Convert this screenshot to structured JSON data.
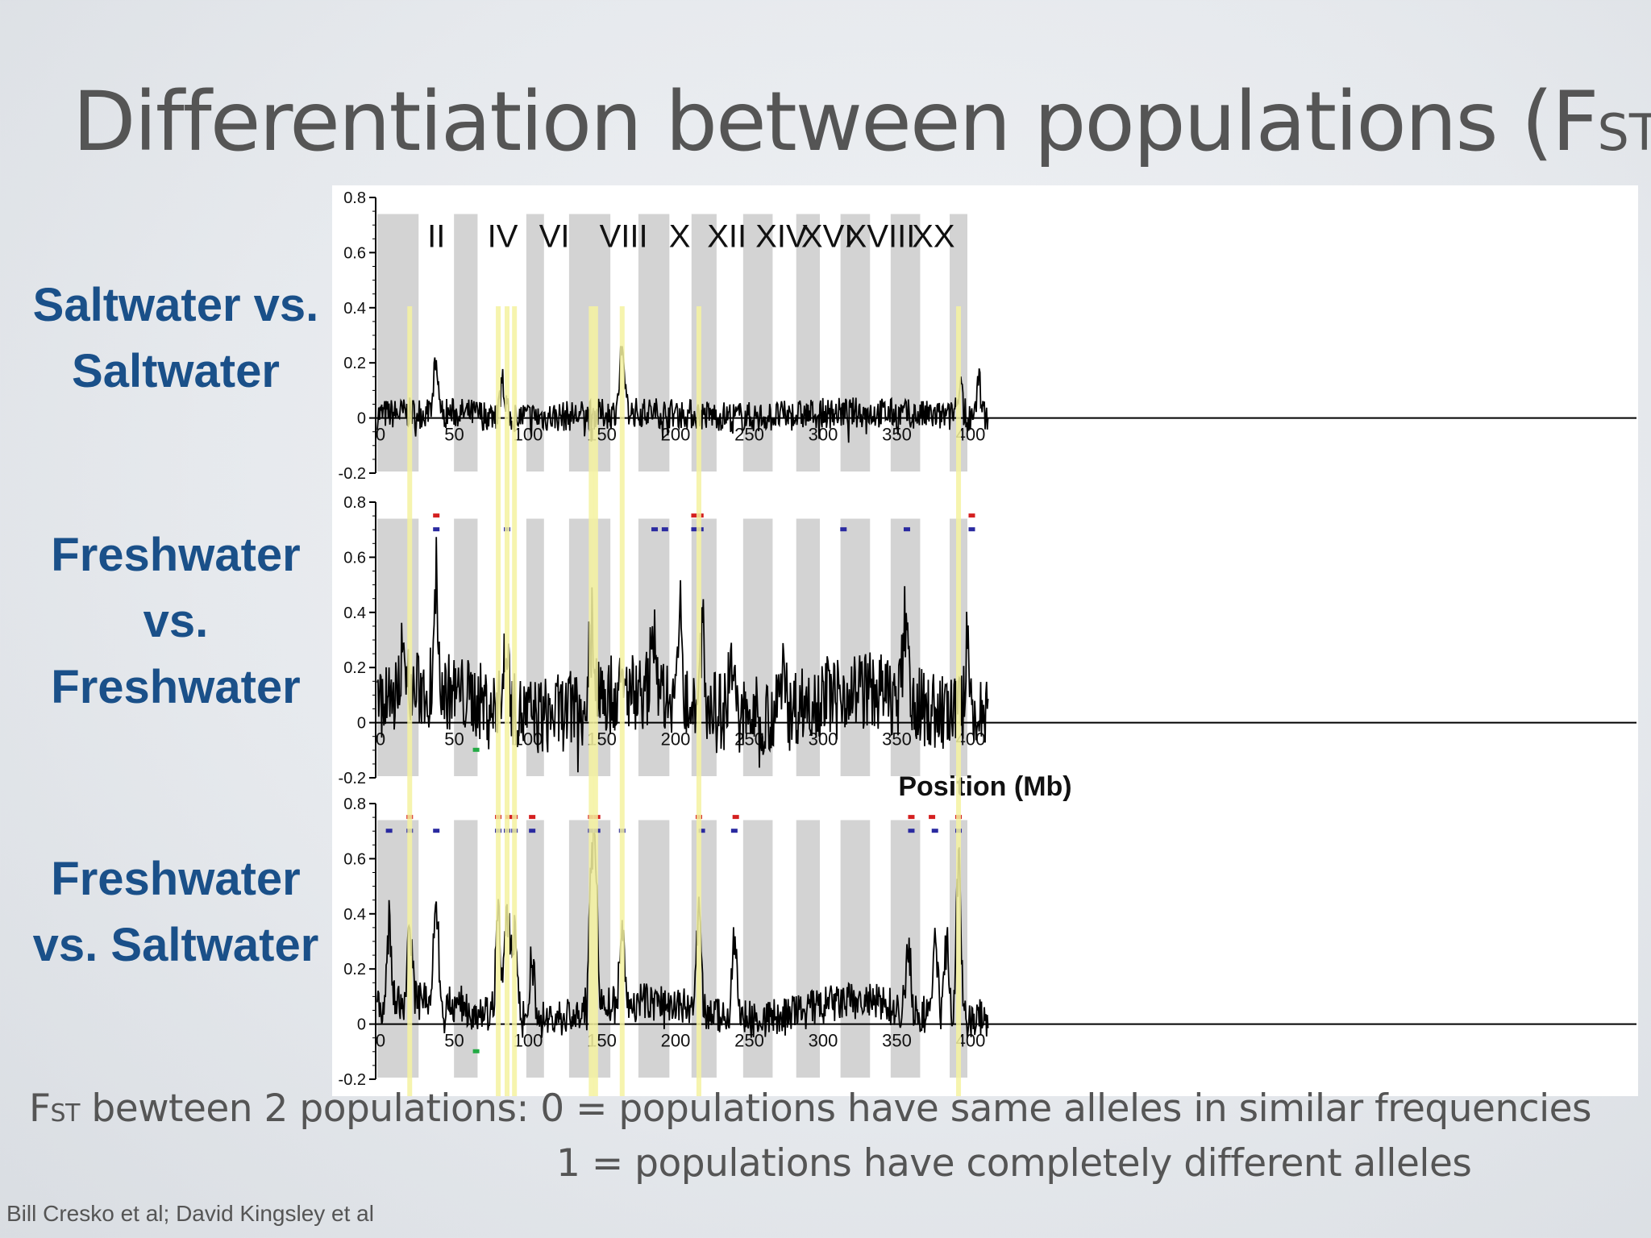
{
  "slide": {
    "title_main": "Differentiation between populations (F",
    "title_sub": "ST",
    "title_close": ")",
    "fst_note_prefix": "F",
    "fst_note_sub": "ST",
    "fst_note_text": " bewteen 2 populations: 0 = populations have same alleles in similar frequencies",
    "fst_note_line2": "1 = populations have completely different alleles",
    "credit": "Bill Cresko et al; David Kingsley et al"
  },
  "row_labels": [
    [
      "Saltwater vs.",
      "Saltwater"
    ],
    [
      "Freshwater",
      "vs.",
      "Freshwater"
    ],
    [
      "Freshwater",
      "vs. Saltwater"
    ]
  ],
  "colors": {
    "row_label": "#1a5089",
    "line": "#000000",
    "chromosome_band": "#d3d3d3",
    "highlight": "#f5f2a0",
    "marker_red": "#d42020",
    "marker_blue": "#2a2aa0",
    "marker_green": "#22aa44"
  },
  "chart_data": {
    "type": "line",
    "xlabel": "Position (Mb)",
    "xlim": [
      0,
      420
    ],
    "x_ticks": [
      "0",
      "50",
      "100",
      "150",
      "200",
      "250",
      "300",
      "350",
      "400"
    ],
    "y_ticks": [
      "0.8",
      "0.6",
      "0.4",
      "0.2",
      "0",
      "-0.2"
    ],
    "ylim": [
      -0.2,
      0.8
    ],
    "chromosome_labels": [
      "II",
      "IV",
      "VI",
      "VIII",
      "X",
      "XII",
      "XIV",
      "XVI",
      "XVIII",
      "XX"
    ],
    "chromosome_label_positions": [
      40,
      85,
      120,
      167,
      205,
      237,
      274,
      305,
      341,
      377
    ],
    "chromosome_bands": [
      [
        0,
        28
      ],
      [
        52,
        68
      ],
      [
        101,
        113
      ],
      [
        130,
        158
      ],
      [
        177,
        198
      ],
      [
        213,
        230
      ],
      [
        248,
        268
      ],
      [
        284,
        300
      ],
      [
        314,
        334
      ],
      [
        348,
        368
      ],
      [
        388,
        400
      ]
    ],
    "highlight_lines": [
      22,
      82,
      88,
      93,
      145,
      148,
      166,
      218,
      394
    ],
    "panels": [
      {
        "name": "Saltwater vs. Saltwater",
        "base": 0.02,
        "noise": 0.07,
        "peaks": [
          [
            40,
            0.2
          ],
          [
            85,
            0.16
          ],
          [
            166,
            0.25
          ],
          [
            395,
            0.16
          ],
          [
            408,
            0.15
          ]
        ],
        "markers": []
      },
      {
        "name": "Freshwater vs. Freshwater",
        "base": 0.12,
        "noise": 0.18,
        "peaks": [
          [
            18,
            0.38
          ],
          [
            40,
            0.52
          ],
          [
            88,
            0.42
          ],
          [
            145,
            0.42
          ],
          [
            187,
            0.38
          ],
          [
            205,
            0.42
          ],
          [
            220,
            0.4
          ],
          [
            240,
            0.38
          ],
          [
            275,
            0.28
          ],
          [
            358,
            0.45
          ],
          [
            400,
            0.42
          ]
        ],
        "markers": [
          {
            "x": 40,
            "y": 0.75,
            "color": "red"
          },
          {
            "x": 40,
            "y": 0.7,
            "color": "blue"
          },
          {
            "x": 88,
            "y": 0.7,
            "color": "blue"
          },
          {
            "x": 188,
            "y": 0.7,
            "color": "blue"
          },
          {
            "x": 195,
            "y": 0.7,
            "color": "blue"
          },
          {
            "x": 215,
            "y": 0.75,
            "color": "red"
          },
          {
            "x": 219,
            "y": 0.75,
            "color": "red"
          },
          {
            "x": 215,
            "y": 0.7,
            "color": "blue"
          },
          {
            "x": 219,
            "y": 0.7,
            "color": "blue"
          },
          {
            "x": 316,
            "y": 0.7,
            "color": "blue"
          },
          {
            "x": 359,
            "y": 0.7,
            "color": "blue"
          },
          {
            "x": 403,
            "y": 0.75,
            "color": "red"
          },
          {
            "x": 403,
            "y": 0.7,
            "color": "blue"
          },
          {
            "x": 67,
            "y": -0.1,
            "color": "green"
          }
        ]
      },
      {
        "name": "Freshwater vs. Saltwater",
        "base": 0.08,
        "noise": 0.09,
        "peaks": [
          [
            8,
            0.4
          ],
          [
            22,
            0.45
          ],
          [
            40,
            0.45
          ],
          [
            82,
            0.45
          ],
          [
            88,
            0.52
          ],
          [
            93,
            0.42
          ],
          [
            105,
            0.3
          ],
          [
            145,
            0.62
          ],
          [
            148,
            0.55
          ],
          [
            166,
            0.4
          ],
          [
            218,
            0.48
          ],
          [
            242,
            0.42
          ],
          [
            360,
            0.32
          ],
          [
            378,
            0.45
          ],
          [
            386,
            0.38
          ],
          [
            394,
            0.65
          ]
        ],
        "markers": [
          {
            "x": 22,
            "y": 0.75,
            "color": "red"
          },
          {
            "x": 8,
            "y": 0.7,
            "color": "blue"
          },
          {
            "x": 22,
            "y": 0.7,
            "color": "blue"
          },
          {
            "x": 40,
            "y": 0.7,
            "color": "blue"
          },
          {
            "x": 82,
            "y": 0.75,
            "color": "red"
          },
          {
            "x": 89,
            "y": 0.75,
            "color": "red"
          },
          {
            "x": 93,
            "y": 0.75,
            "color": "red"
          },
          {
            "x": 82,
            "y": 0.7,
            "color": "blue"
          },
          {
            "x": 88,
            "y": 0.7,
            "color": "blue"
          },
          {
            "x": 93,
            "y": 0.7,
            "color": "blue"
          },
          {
            "x": 105,
            "y": 0.75,
            "color": "red"
          },
          {
            "x": 105,
            "y": 0.7,
            "color": "blue"
          },
          {
            "x": 145,
            "y": 0.75,
            "color": "red"
          },
          {
            "x": 149,
            "y": 0.75,
            "color": "red"
          },
          {
            "x": 145,
            "y": 0.7,
            "color": "blue"
          },
          {
            "x": 149,
            "y": 0.7,
            "color": "blue"
          },
          {
            "x": 166,
            "y": 0.7,
            "color": "blue"
          },
          {
            "x": 218,
            "y": 0.75,
            "color": "red"
          },
          {
            "x": 220,
            "y": 0.7,
            "color": "blue"
          },
          {
            "x": 243,
            "y": 0.75,
            "color": "red"
          },
          {
            "x": 242,
            "y": 0.7,
            "color": "blue"
          },
          {
            "x": 362,
            "y": 0.75,
            "color": "red"
          },
          {
            "x": 362,
            "y": 0.7,
            "color": "blue"
          },
          {
            "x": 376,
            "y": 0.75,
            "color": "red"
          },
          {
            "x": 378,
            "y": 0.7,
            "color": "blue"
          },
          {
            "x": 394,
            "y": 0.75,
            "color": "red"
          },
          {
            "x": 394,
            "y": 0.7,
            "color": "blue"
          },
          {
            "x": 67,
            "y": -0.1,
            "color": "green"
          }
        ]
      }
    ]
  }
}
